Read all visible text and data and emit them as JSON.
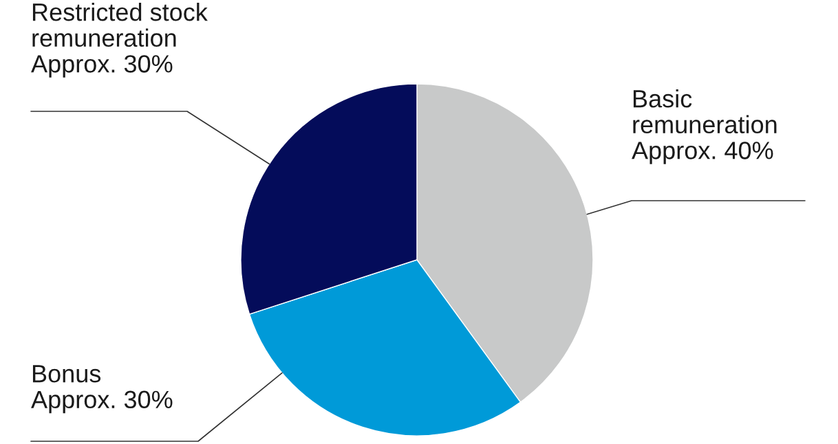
{
  "chart_data": {
    "type": "pie",
    "categories": [
      "Basic remuneration",
      "Bonus",
      "Restricted stock remuneration"
    ],
    "values": [
      40,
      30,
      30
    ],
    "colors": [
      "#c8c9c9",
      "#009ad8",
      "#040c5a"
    ],
    "value_labels": [
      "Approx. 40%",
      "Approx. 30%",
      "Approx. 30%"
    ]
  }
}
